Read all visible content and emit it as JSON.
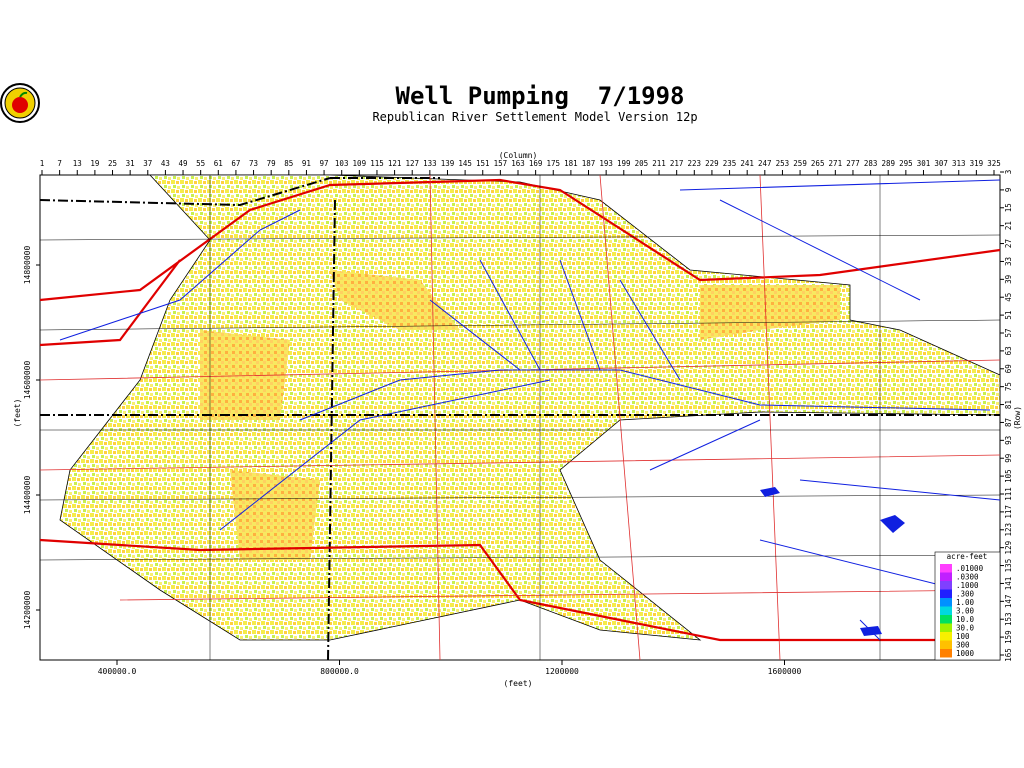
{
  "header": {
    "title": "Well Pumping  7/1998",
    "subtitle": "Republican River Settlement Model Version 12p"
  },
  "column_axis": {
    "label": "(Column)",
    "ticks": [
      1,
      7,
      13,
      19,
      25,
      31,
      37,
      43,
      49,
      55,
      61,
      67,
      73,
      79,
      85,
      91,
      97,
      103,
      109,
      115,
      121,
      127,
      133,
      139,
      145,
      151,
      157,
      163,
      169,
      175,
      181,
      187,
      193,
      199,
      205,
      211,
      217,
      223,
      229,
      235,
      241,
      247,
      253,
      259,
      265,
      271,
      277,
      283,
      289,
      295,
      301,
      307,
      313,
      319,
      325
    ]
  },
  "row_axis": {
    "label": "(Row)",
    "ticks": [
      3,
      9,
      15,
      21,
      27,
      33,
      39,
      45,
      51,
      57,
      63,
      69,
      75,
      81,
      87,
      93,
      99,
      105,
      111,
      117,
      123,
      129,
      135,
      141,
      147,
      153,
      159,
      165
    ]
  },
  "feet_x": {
    "label": "(feet)",
    "ticks": [
      {
        "value": 400000,
        "label": "400000.0"
      },
      {
        "value": 800000,
        "label": "800000.0"
      },
      1200000,
      1600000
    ]
  },
  "feet_y": {
    "label": "(feet)",
    "ticks": [
      14800000,
      14600000,
      14400000,
      14200000
    ]
  },
  "legend": {
    "title": "acre-feet",
    "items": [
      {
        "label": ".01000",
        "color": "#ff40ff"
      },
      {
        "label": ".0300",
        "color": "#c020ff"
      },
      {
        "label": ".1000",
        "color": "#8040ff"
      },
      {
        "label": ".300",
        "color": "#2020ff"
      },
      {
        "label": "1.00",
        "color": "#0090ff"
      },
      {
        "label": "3.00",
        "color": "#00d8e0"
      },
      {
        "label": "10.0",
        "color": "#00e060"
      },
      {
        "label": "30.0",
        "color": "#a0f000"
      },
      {
        "label": "100",
        "color": "#f8f000"
      },
      {
        "label": "300",
        "color": "#ffc000"
      },
      {
        "label": "1000",
        "color": "#ff8000"
      }
    ]
  }
}
